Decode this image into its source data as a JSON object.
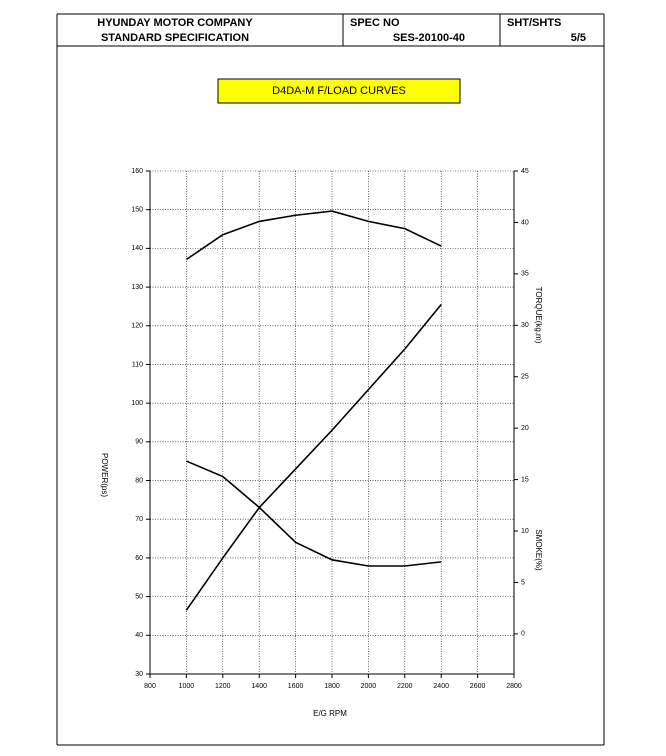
{
  "header": {
    "company": "HYUNDAY MOTOR COMPANY",
    "subtitle": "STANDARD SPECIFICATION",
    "spec_label": "SPEC NO",
    "spec_no": "SES-20100-40",
    "sheet_label": "SHT/SHTS",
    "sheet": "5/5"
  },
  "chart_data": {
    "type": "line",
    "title": "D4DA-M F/LOAD CURVES",
    "x_label": "E/G RPM",
    "y_label": "POWER(ps)",
    "y2_labels": [
      "TORQUE(kg.m)",
      "SMOKE(%)"
    ],
    "x": [
      1000,
      1200,
      1400,
      1600,
      1800,
      2000,
      2200,
      2400
    ],
    "xlim": [
      800,
      2800
    ],
    "xticks": [
      800,
      1000,
      1200,
      1400,
      1600,
      1800,
      2000,
      2200,
      2400,
      2600,
      2800
    ],
    "ylim": [
      30,
      160
    ],
    "yticks": [
      30,
      40,
      50,
      60,
      70,
      80,
      90,
      100,
      110,
      120,
      130,
      140,
      150,
      160
    ],
    "y2lim": [
      -3.9,
      45
    ],
    "y2ticks": [
      0,
      5,
      10,
      15,
      20,
      25,
      30,
      35,
      40,
      45
    ],
    "grid": true,
    "series": [
      {
        "color": "#000000",
        "values": [
          46.5,
          60,
          73,
          83,
          93,
          103.5,
          114,
          125.5
        ]
      },
      {
        "color": "#000000",
        "axis": "y2",
        "values": [
          36.4,
          38.8,
          40.1,
          40.7,
          41.1,
          40.1,
          39.4,
          37.7
        ]
      },
      {
        "color": "#000000",
        "axis": "y2",
        "values": [
          16.8,
          15.3,
          12.3,
          8.9,
          7.2,
          6.6,
          6.6,
          7.0
        ]
      }
    ]
  }
}
